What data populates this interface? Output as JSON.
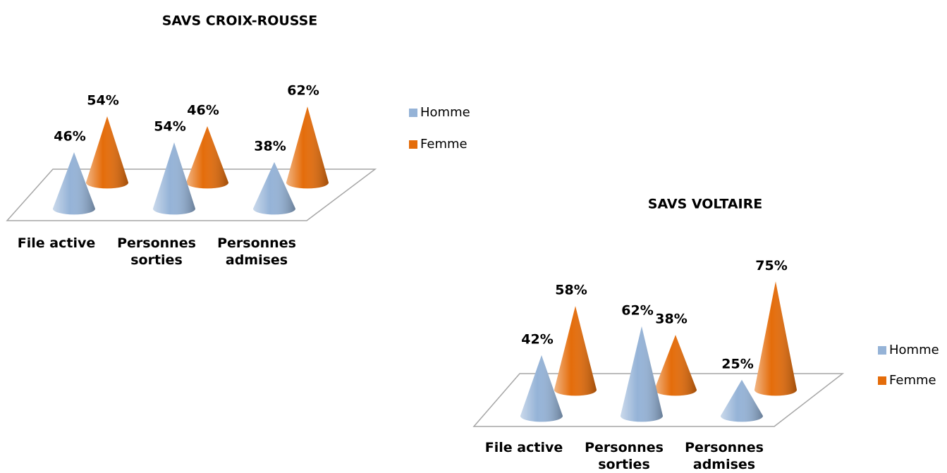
{
  "chart_data": [
    {
      "type": "cone3d",
      "title": "SAVS CROIX-ROUSSE",
      "categories": [
        "File active",
        "Personnes sorties",
        "Personnes admises"
      ],
      "series": [
        {
          "name": "Homme",
          "color": "#95b3d7",
          "values": [
            46,
            54,
            38
          ],
          "value_labels": [
            "46%",
            "54%",
            "38%"
          ]
        },
        {
          "name": "Femme",
          "color": "#e46c0a",
          "values": [
            54,
            46,
            62
          ],
          "value_labels": [
            "54%",
            "46%",
            "62%"
          ]
        }
      ],
      "legend": "right"
    },
    {
      "type": "cone3d",
      "title": "SAVS VOLTAIRE",
      "categories": [
        "File active",
        "Personnes sorties",
        "Personnes admises"
      ],
      "series": [
        {
          "name": "Homme",
          "color": "#95b3d7",
          "values": [
            42,
            62,
            25
          ],
          "value_labels": [
            "42%",
            "62%",
            "25%"
          ]
        },
        {
          "name": "Femme",
          "color": "#e46c0a",
          "values": [
            58,
            38,
            75
          ],
          "value_labels": [
            "58%",
            "38%",
            "75%"
          ]
        }
      ],
      "legend": "right"
    }
  ]
}
